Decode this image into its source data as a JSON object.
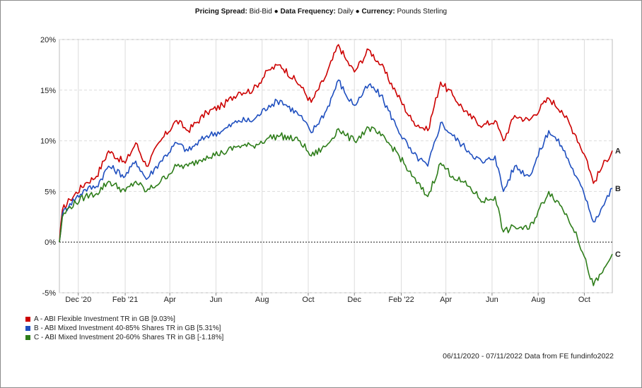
{
  "header": {
    "pricing_label": "Pricing Spread:",
    "pricing_value": "Bid-Bid",
    "sep1": "●",
    "frequency_label": "Data Frequency:",
    "frequency_value": "Daily",
    "sep2": "●",
    "currency_label": "Currency:",
    "currency_value": "Pounds Sterling"
  },
  "footer": "06/11/2020 - 07/11/2022 Data from FE fundinfo2022",
  "chart_data": {
    "type": "line",
    "x_range": [
      "2020-11-06",
      "2022-11-07"
    ],
    "ylim": [
      -5,
      20
    ],
    "y_ticks": [
      "20%",
      "15%",
      "10%",
      "5%",
      "0%",
      "-5%"
    ],
    "y_tick_values": [
      20,
      15,
      10,
      5,
      0,
      -5
    ],
    "x_tick_labels": [
      "Dec '20",
      "Feb '21",
      "Apr",
      "Jun",
      "Aug",
      "Oct",
      "Dec",
      "Feb '22",
      "Apr",
      "Jun",
      "Aug",
      "Oct"
    ],
    "x_tick_dates": [
      "2020-12-01",
      "2021-02-01",
      "2021-04-01",
      "2021-06-01",
      "2021-08-01",
      "2021-10-01",
      "2021-12-01",
      "2022-02-01",
      "2022-04-01",
      "2022-06-01",
      "2022-08-01",
      "2022-10-01"
    ],
    "grid": true,
    "legend_position": "bottom-left",
    "zero_line": true,
    "series": [
      {
        "name": "A - ABI Flexible Investment TR in GB [9.03%]",
        "end_label": "A",
        "color": "#cc0000",
        "dates": [
          "2020-11-06",
          "2020-11-10",
          "2020-11-20",
          "2020-12-10",
          "2020-12-25",
          "2021-01-10",
          "2021-02-01",
          "2021-02-15",
          "2021-03-01",
          "2021-03-20",
          "2021-04-10",
          "2021-04-25",
          "2021-05-20",
          "2021-06-10",
          "2021-07-01",
          "2021-07-20",
          "2021-08-10",
          "2021-08-25",
          "2021-09-20",
          "2021-10-05",
          "2021-10-25",
          "2021-11-10",
          "2021-11-20",
          "2021-12-01",
          "2021-12-20",
          "2022-01-05",
          "2022-01-25",
          "2022-02-15",
          "2022-03-08",
          "2022-03-25",
          "2022-04-10",
          "2022-05-01",
          "2022-05-20",
          "2022-06-05",
          "2022-06-16",
          "2022-07-01",
          "2022-07-20",
          "2022-08-15",
          "2022-09-01",
          "2022-09-20",
          "2022-10-05",
          "2022-10-13",
          "2022-10-25",
          "2022-11-07"
        ],
        "values": [
          0,
          3.2,
          4.2,
          5.8,
          6.5,
          9.0,
          7.8,
          9.8,
          7.5,
          10.0,
          12.0,
          11.0,
          12.8,
          13.5,
          14.8,
          15.0,
          17.0,
          17.5,
          15.5,
          13.8,
          16.5,
          19.5,
          18.0,
          16.8,
          19.0,
          17.5,
          14.8,
          12.0,
          11.0,
          15.8,
          14.5,
          12.5,
          11.5,
          12.0,
          10.0,
          12.5,
          12.0,
          14.2,
          13.0,
          10.5,
          8.0,
          5.8,
          7.5,
          9.03
        ]
      },
      {
        "name": "B - ABI Mixed Investment 40-85% Shares TR in GB [5.31%]",
        "end_label": "B",
        "color": "#1f4fbf",
        "dates": [
          "2020-11-06",
          "2020-11-10",
          "2020-11-20",
          "2020-12-10",
          "2020-12-25",
          "2021-01-10",
          "2021-02-01",
          "2021-02-15",
          "2021-03-01",
          "2021-03-20",
          "2021-04-10",
          "2021-04-25",
          "2021-05-20",
          "2021-06-10",
          "2021-07-01",
          "2021-07-20",
          "2021-08-10",
          "2021-08-25",
          "2021-09-20",
          "2021-10-05",
          "2021-10-25",
          "2021-11-10",
          "2021-11-20",
          "2021-12-01",
          "2021-12-20",
          "2022-01-05",
          "2022-01-25",
          "2022-02-15",
          "2022-03-08",
          "2022-03-25",
          "2022-04-10",
          "2022-05-01",
          "2022-05-20",
          "2022-06-05",
          "2022-06-16",
          "2022-07-01",
          "2022-07-20",
          "2022-08-15",
          "2022-09-01",
          "2022-09-20",
          "2022-10-05",
          "2022-10-13",
          "2022-10-25",
          "2022-11-07"
        ],
        "values": [
          0,
          2.8,
          3.8,
          5.2,
          5.5,
          7.5,
          6.5,
          8.0,
          6.2,
          8.0,
          9.8,
          9.0,
          10.5,
          11.0,
          12.0,
          12.0,
          13.5,
          14.0,
          12.5,
          10.8,
          13.0,
          16.0,
          14.5,
          13.5,
          15.5,
          14.5,
          11.5,
          8.8,
          7.5,
          11.8,
          10.5,
          9.0,
          7.8,
          8.5,
          5.0,
          7.5,
          6.5,
          11.0,
          9.5,
          6.5,
          4.0,
          2.0,
          3.5,
          5.31
        ]
      },
      {
        "name": "C - ABI Mixed Investment 20-60% Shares TR in GB [-1.18%]",
        "end_label": "C",
        "color": "#2e7d1a",
        "dates": [
          "2020-11-06",
          "2020-11-10",
          "2020-11-20",
          "2020-12-10",
          "2020-12-25",
          "2021-01-10",
          "2021-02-01",
          "2021-02-15",
          "2021-03-01",
          "2021-03-20",
          "2021-04-10",
          "2021-04-25",
          "2021-05-20",
          "2021-06-10",
          "2021-07-01",
          "2021-07-20",
          "2021-08-10",
          "2021-08-25",
          "2021-09-20",
          "2021-10-05",
          "2021-10-25",
          "2021-11-10",
          "2021-11-20",
          "2021-12-01",
          "2021-12-20",
          "2022-01-05",
          "2022-01-25",
          "2022-02-15",
          "2022-03-08",
          "2022-03-25",
          "2022-04-10",
          "2022-05-01",
          "2022-05-20",
          "2022-06-05",
          "2022-06-16",
          "2022-07-01",
          "2022-07-20",
          "2022-08-15",
          "2022-09-01",
          "2022-09-20",
          "2022-10-05",
          "2022-10-13",
          "2022-10-25",
          "2022-11-07"
        ],
        "values": [
          0,
          2.5,
          3.5,
          4.5,
          4.8,
          6.0,
          5.0,
          6.0,
          5.0,
          6.0,
          7.5,
          7.5,
          8.5,
          8.8,
          9.5,
          9.5,
          10.3,
          10.5,
          10.0,
          8.5,
          9.5,
          11.2,
          10.5,
          10.0,
          11.3,
          10.5,
          9.0,
          6.5,
          4.5,
          7.8,
          6.5,
          5.5,
          4.0,
          4.5,
          1.0,
          1.5,
          1.3,
          5.0,
          3.5,
          1.0,
          -2.5,
          -4.3,
          -3.0,
          -1.18
        ]
      }
    ]
  }
}
